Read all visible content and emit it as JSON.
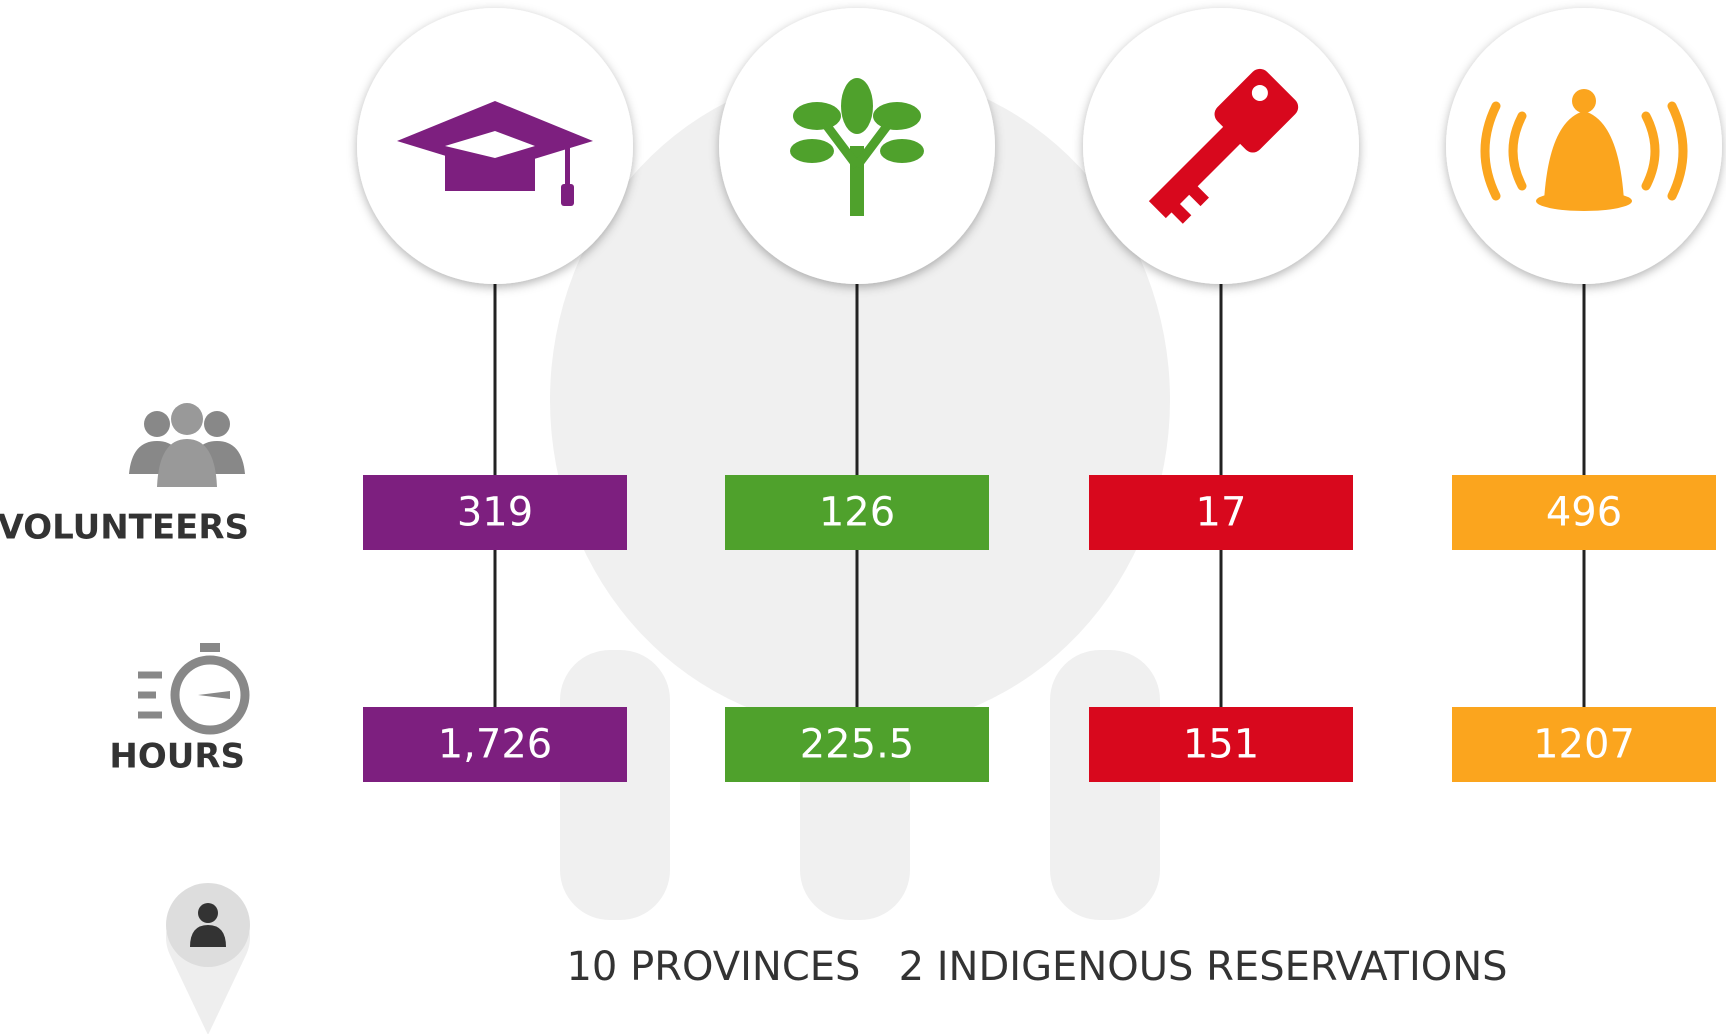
{
  "labels": {
    "volunteers": "VOLUNTEERS",
    "hours": "HOURS"
  },
  "columns": [
    {
      "color": "#7d1f7f",
      "volunteers": "319",
      "hours": "1,726"
    },
    {
      "color": "#4fa12c",
      "volunteers": "126",
      "hours": "225.5"
    },
    {
      "color": "#d8081d",
      "volunteers": "17",
      "hours": "151"
    },
    {
      "color": "#fba51e",
      "volunteers": "496",
      "hours": "1207"
    }
  ],
  "footer": "10 PROVINCES   2 INDIGENOUS RESERVATIONS"
}
